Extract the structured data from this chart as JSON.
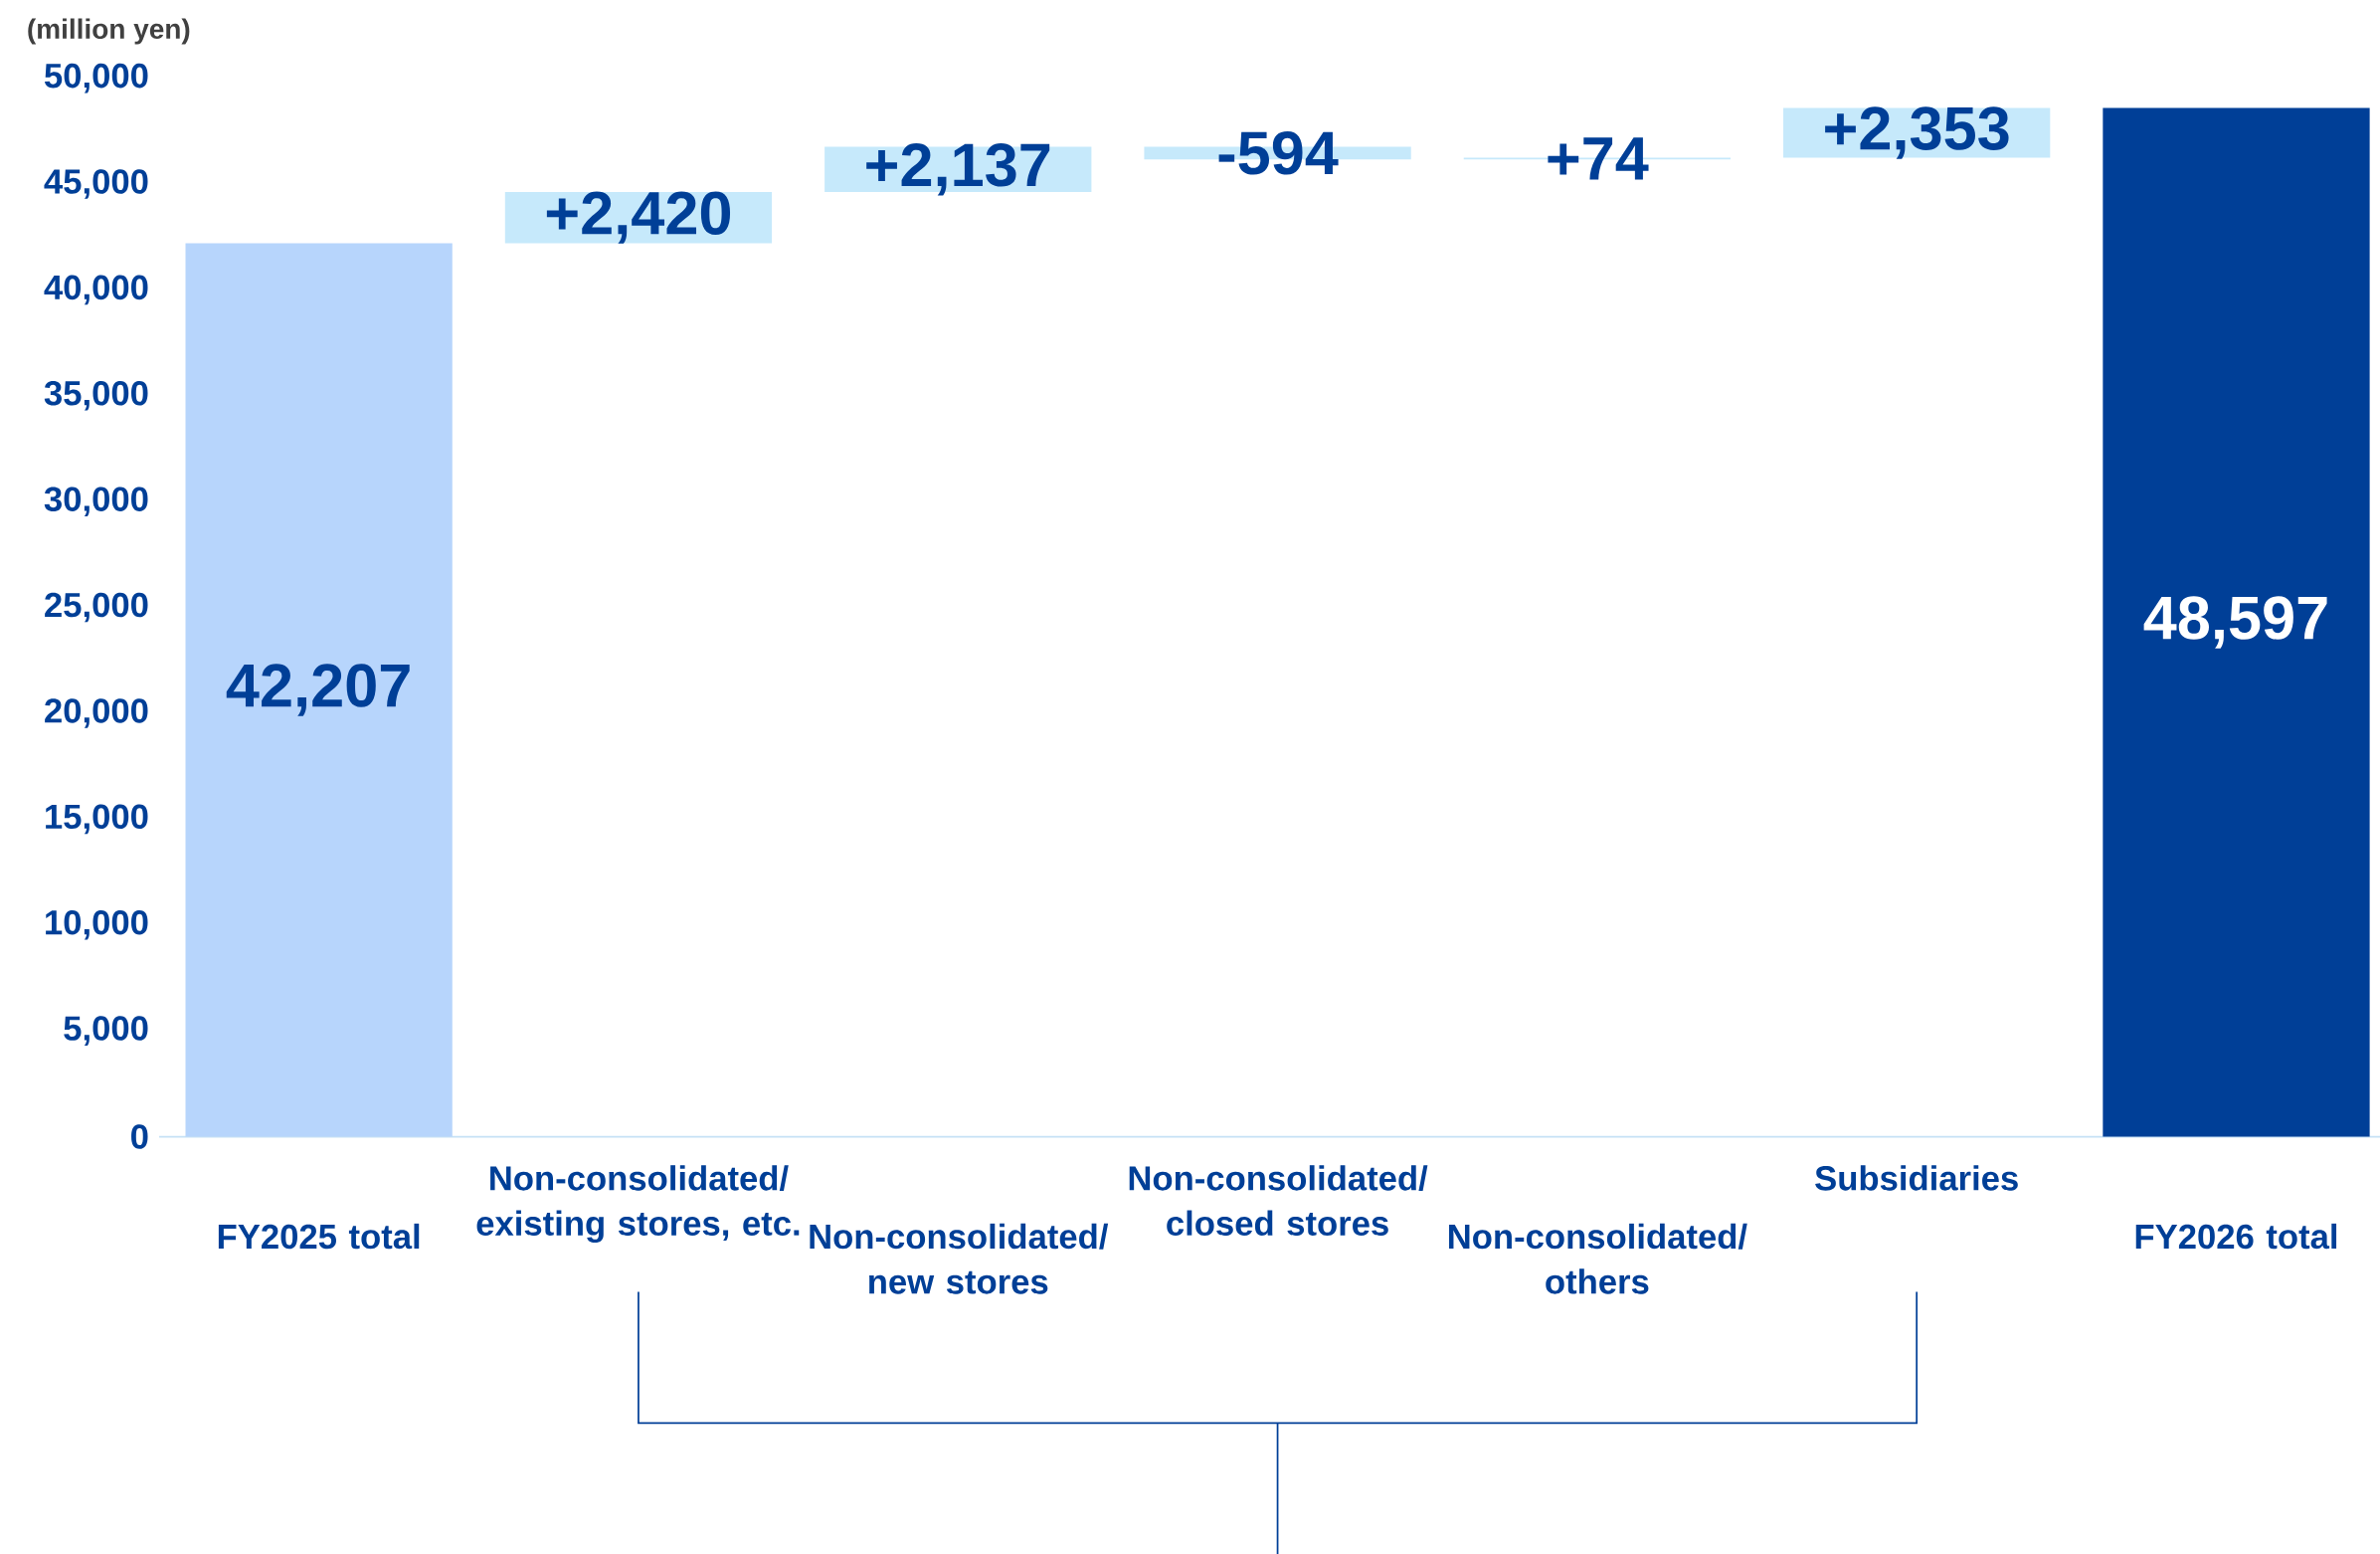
{
  "chart_data": {
    "type": "bar",
    "ylabel": "(million yen)",
    "categories": [
      "FY2025 total",
      "Non-consolidated/ existing stores, etc.",
      "Non-consolidated/ new stores",
      "Non-consolidated/ closed stores",
      "Non-consolidated/ others",
      "Subsidiaries",
      "FY2026 total"
    ],
    "values": [
      42207,
      2420,
      2137,
      -594,
      74,
      2353,
      48597
    ],
    "base": [
      0,
      42207,
      44627,
      46764,
      46170,
      46244,
      0
    ],
    "colors": [
      "#b7d5fc",
      "#c6e9fb",
      "#c6e9fb",
      "#c6e9fb",
      "#c6e9fb",
      "#c6e9fb",
      "#003f97"
    ],
    "value_labels": [
      "42,207",
      "+2,420",
      "+2,137",
      "-594",
      "+74",
      "+2,353",
      "48,597"
    ],
    "ylim": [
      0,
      50000
    ],
    "yticks": [
      {
        "value": 0,
        "label": "0"
      },
      {
        "value": 5000,
        "label": "5,000"
      },
      {
        "value": 10000,
        "label": "10,000"
      },
      {
        "value": 15000,
        "label": "15,000"
      },
      {
        "value": 20000,
        "label": "20,000"
      },
      {
        "value": 25000,
        "label": "25,000"
      },
      {
        "value": 30000,
        "label": "30,000"
      },
      {
        "value": 35000,
        "label": "35,000"
      },
      {
        "value": 40000,
        "label": "40,000"
      },
      {
        "value": 45000,
        "label": "45,000"
      },
      {
        "value": 50000,
        "label": "50,000"
      }
    ]
  }
}
